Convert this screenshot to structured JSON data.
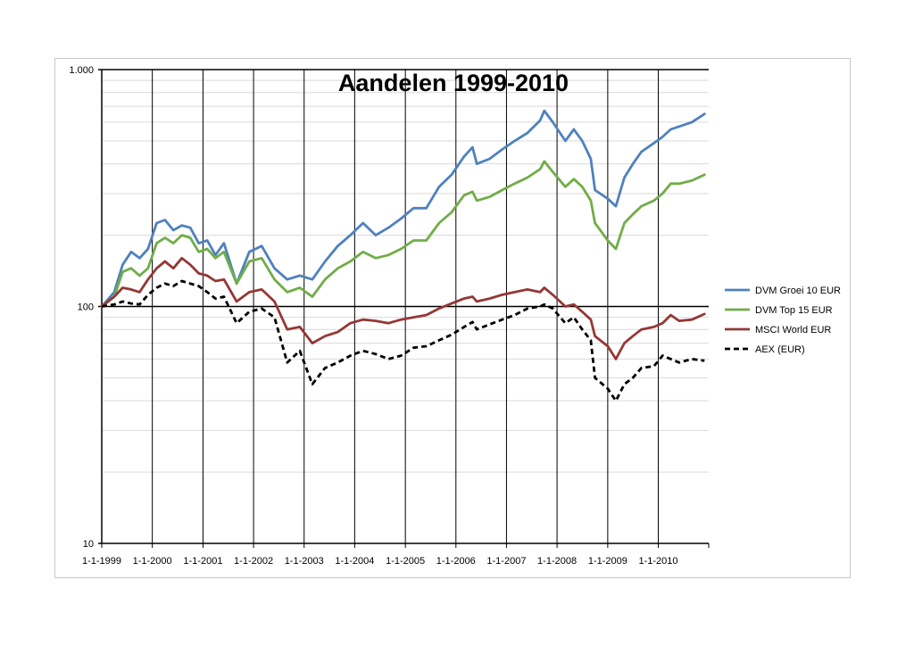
{
  "chart_data": {
    "type": "line",
    "title": "Aandelen 1999-2010",
    "y_scale": "log",
    "ylim": [
      10,
      1000
    ],
    "y_ticks": [
      {
        "value": 10,
        "label": "10"
      },
      {
        "value": 100,
        "label": "100"
      },
      {
        "value": 1000,
        "label": "1.000"
      }
    ],
    "xlim": [
      "1999-01-01",
      "2010-12-31"
    ],
    "x_ticks": [
      {
        "value": "1999-01-01",
        "label": "1-1-1999"
      },
      {
        "value": "2000-01-01",
        "label": "1-1-2000"
      },
      {
        "value": "2001-01-01",
        "label": "1-1-2001"
      },
      {
        "value": "2002-01-01",
        "label": "1-1-2002"
      },
      {
        "value": "2003-01-01",
        "label": "1-1-2003"
      },
      {
        "value": "2004-01-01",
        "label": "1-1-2004"
      },
      {
        "value": "2005-01-01",
        "label": "1-1-2005"
      },
      {
        "value": "2006-01-01",
        "label": "1-1-2006"
      },
      {
        "value": "2007-01-01",
        "label": "1-1-2007"
      },
      {
        "value": "2008-01-01",
        "label": "1-1-2008"
      },
      {
        "value": "2009-01-01",
        "label": "1-1-2009"
      },
      {
        "value": "2010-01-01",
        "label": "1-1-2010"
      }
    ],
    "grid": true,
    "legend_position": "right",
    "series": [
      {
        "name": "DVM Groei 10 EUR",
        "color": "#4f81bd",
        "style": "solid",
        "points": [
          [
            "1999-01-01",
            100
          ],
          [
            "1999-04-01",
            115
          ],
          [
            "1999-06-01",
            150
          ],
          [
            "1999-08-01",
            170
          ],
          [
            "1999-10-01",
            160
          ],
          [
            "1999-12-01",
            175
          ],
          [
            "2000-02-01",
            225
          ],
          [
            "2000-04-01",
            232
          ],
          [
            "2000-06-01",
            210
          ],
          [
            "2000-08-01",
            220
          ],
          [
            "2000-10-01",
            215
          ],
          [
            "2000-12-01",
            185
          ],
          [
            "2001-02-01",
            190
          ],
          [
            "2001-04-01",
            165
          ],
          [
            "2001-06-01",
            185
          ],
          [
            "2001-09-01",
            125
          ],
          [
            "2001-12-01",
            170
          ],
          [
            "2002-03-01",
            180
          ],
          [
            "2002-06-01",
            145
          ],
          [
            "2002-09-01",
            130
          ],
          [
            "2002-12-01",
            135
          ],
          [
            "2003-03-01",
            130
          ],
          [
            "2003-06-01",
            155
          ],
          [
            "2003-09-01",
            180
          ],
          [
            "2003-12-01",
            200
          ],
          [
            "2004-03-01",
            225
          ],
          [
            "2004-06-01",
            200
          ],
          [
            "2004-09-01",
            215
          ],
          [
            "2004-12-01",
            235
          ],
          [
            "2005-03-01",
            260
          ],
          [
            "2005-06-01",
            260
          ],
          [
            "2005-09-01",
            320
          ],
          [
            "2005-12-01",
            360
          ],
          [
            "2006-03-01",
            430
          ],
          [
            "2006-05-01",
            470
          ],
          [
            "2006-06-01",
            400
          ],
          [
            "2006-09-01",
            420
          ],
          [
            "2006-12-01",
            460
          ],
          [
            "2007-03-01",
            500
          ],
          [
            "2007-06-01",
            540
          ],
          [
            "2007-09-01",
            610
          ],
          [
            "2007-10-01",
            670
          ],
          [
            "2007-12-01",
            600
          ],
          [
            "2008-03-01",
            500
          ],
          [
            "2008-05-01",
            560
          ],
          [
            "2008-07-01",
            500
          ],
          [
            "2008-09-01",
            420
          ],
          [
            "2008-10-01",
            310
          ],
          [
            "2009-01-01",
            285
          ],
          [
            "2009-03-01",
            265
          ],
          [
            "2009-05-01",
            350
          ],
          [
            "2009-07-01",
            400
          ],
          [
            "2009-09-01",
            450
          ],
          [
            "2009-12-01",
            490
          ],
          [
            "2010-02-01",
            520
          ],
          [
            "2010-04-01",
            560
          ],
          [
            "2010-06-01",
            575
          ],
          [
            "2010-09-01",
            600
          ],
          [
            "2010-12-01",
            650
          ]
        ]
      },
      {
        "name": "DVM Top 15 EUR",
        "color": "#70ad47",
        "style": "solid",
        "points": [
          [
            "1999-01-01",
            100
          ],
          [
            "1999-04-01",
            110
          ],
          [
            "1999-06-01",
            140
          ],
          [
            "1999-08-01",
            145
          ],
          [
            "1999-10-01",
            135
          ],
          [
            "1999-12-01",
            145
          ],
          [
            "2000-02-01",
            185
          ],
          [
            "2000-04-01",
            195
          ],
          [
            "2000-06-01",
            185
          ],
          [
            "2000-08-01",
            200
          ],
          [
            "2000-10-01",
            195
          ],
          [
            "2000-12-01",
            170
          ],
          [
            "2001-02-01",
            175
          ],
          [
            "2001-04-01",
            160
          ],
          [
            "2001-06-01",
            170
          ],
          [
            "2001-09-01",
            125
          ],
          [
            "2001-12-01",
            155
          ],
          [
            "2002-03-01",
            160
          ],
          [
            "2002-06-01",
            130
          ],
          [
            "2002-09-01",
            115
          ],
          [
            "2002-12-01",
            120
          ],
          [
            "2003-03-01",
            110
          ],
          [
            "2003-06-01",
            130
          ],
          [
            "2003-09-01",
            145
          ],
          [
            "2003-12-01",
            155
          ],
          [
            "2004-03-01",
            170
          ],
          [
            "2004-06-01",
            160
          ],
          [
            "2004-09-01",
            165
          ],
          [
            "2004-12-01",
            175
          ],
          [
            "2005-03-01",
            190
          ],
          [
            "2005-06-01",
            190
          ],
          [
            "2005-09-01",
            225
          ],
          [
            "2005-12-01",
            250
          ],
          [
            "2006-03-01",
            295
          ],
          [
            "2006-05-01",
            305
          ],
          [
            "2006-06-01",
            280
          ],
          [
            "2006-09-01",
            290
          ],
          [
            "2006-12-01",
            310
          ],
          [
            "2007-03-01",
            330
          ],
          [
            "2007-06-01",
            350
          ],
          [
            "2007-09-01",
            380
          ],
          [
            "2007-10-01",
            410
          ],
          [
            "2007-12-01",
            370
          ],
          [
            "2008-03-01",
            320
          ],
          [
            "2008-05-01",
            345
          ],
          [
            "2008-07-01",
            320
          ],
          [
            "2008-09-01",
            280
          ],
          [
            "2008-10-01",
            225
          ],
          [
            "2009-01-01",
            190
          ],
          [
            "2009-03-01",
            175
          ],
          [
            "2009-05-01",
            225
          ],
          [
            "2009-07-01",
            245
          ],
          [
            "2009-09-01",
            265
          ],
          [
            "2009-12-01",
            280
          ],
          [
            "2010-02-01",
            300
          ],
          [
            "2010-04-01",
            330
          ],
          [
            "2010-06-01",
            330
          ],
          [
            "2010-09-01",
            340
          ],
          [
            "2010-12-01",
            360
          ]
        ]
      },
      {
        "name": "MSCI World EUR",
        "color": "#953735",
        "style": "solid",
        "points": [
          [
            "1999-01-01",
            100
          ],
          [
            "1999-04-01",
            110
          ],
          [
            "1999-06-01",
            120
          ],
          [
            "1999-08-01",
            118
          ],
          [
            "1999-10-01",
            115
          ],
          [
            "1999-12-01",
            130
          ],
          [
            "2000-02-01",
            145
          ],
          [
            "2000-04-01",
            155
          ],
          [
            "2000-06-01",
            145
          ],
          [
            "2000-08-01",
            160
          ],
          [
            "2000-10-01",
            150
          ],
          [
            "2000-12-01",
            138
          ],
          [
            "2001-02-01",
            135
          ],
          [
            "2001-04-01",
            128
          ],
          [
            "2001-06-01",
            130
          ],
          [
            "2001-09-01",
            105
          ],
          [
            "2001-12-01",
            115
          ],
          [
            "2002-03-01",
            118
          ],
          [
            "2002-06-01",
            105
          ],
          [
            "2002-09-01",
            80
          ],
          [
            "2002-12-01",
            82
          ],
          [
            "2003-03-01",
            70
          ],
          [
            "2003-06-01",
            75
          ],
          [
            "2003-09-01",
            78
          ],
          [
            "2003-12-01",
            85
          ],
          [
            "2004-03-01",
            88
          ],
          [
            "2004-06-01",
            87
          ],
          [
            "2004-09-01",
            85
          ],
          [
            "2004-12-01",
            88
          ],
          [
            "2005-03-01",
            90
          ],
          [
            "2005-06-01",
            92
          ],
          [
            "2005-09-01",
            98
          ],
          [
            "2005-12-01",
            103
          ],
          [
            "2006-03-01",
            108
          ],
          [
            "2006-05-01",
            110
          ],
          [
            "2006-06-01",
            105
          ],
          [
            "2006-09-01",
            108
          ],
          [
            "2006-12-01",
            112
          ],
          [
            "2007-03-01",
            115
          ],
          [
            "2007-06-01",
            118
          ],
          [
            "2007-09-01",
            115
          ],
          [
            "2007-10-01",
            120
          ],
          [
            "2007-12-01",
            112
          ],
          [
            "2008-03-01",
            100
          ],
          [
            "2008-05-01",
            102
          ],
          [
            "2008-07-01",
            95
          ],
          [
            "2008-09-01",
            88
          ],
          [
            "2008-10-01",
            75
          ],
          [
            "2009-01-01",
            68
          ],
          [
            "2009-03-01",
            60
          ],
          [
            "2009-05-01",
            70
          ],
          [
            "2009-07-01",
            75
          ],
          [
            "2009-09-01",
            80
          ],
          [
            "2009-12-01",
            82
          ],
          [
            "2010-02-01",
            85
          ],
          [
            "2010-04-01",
            92
          ],
          [
            "2010-06-01",
            87
          ],
          [
            "2010-09-01",
            88
          ],
          [
            "2010-12-01",
            93
          ]
        ]
      },
      {
        "name": "AEX (EUR)",
        "color": "#000000",
        "style": "dashed",
        "points": [
          [
            "1999-01-01",
            100
          ],
          [
            "1999-04-01",
            102
          ],
          [
            "1999-06-01",
            105
          ],
          [
            "1999-08-01",
            103
          ],
          [
            "1999-10-01",
            102
          ],
          [
            "1999-12-01",
            112
          ],
          [
            "2000-02-01",
            120
          ],
          [
            "2000-04-01",
            125
          ],
          [
            "2000-06-01",
            122
          ],
          [
            "2000-08-01",
            128
          ],
          [
            "2000-10-01",
            125
          ],
          [
            "2000-12-01",
            122
          ],
          [
            "2001-02-01",
            115
          ],
          [
            "2001-04-01",
            108
          ],
          [
            "2001-06-01",
            110
          ],
          [
            "2001-09-01",
            85
          ],
          [
            "2001-12-01",
            95
          ],
          [
            "2002-03-01",
            98
          ],
          [
            "2002-06-01",
            90
          ],
          [
            "2002-09-01",
            58
          ],
          [
            "2002-12-01",
            65
          ],
          [
            "2003-03-01",
            47
          ],
          [
            "2003-06-01",
            55
          ],
          [
            "2003-09-01",
            58
          ],
          [
            "2003-12-01",
            62
          ],
          [
            "2004-03-01",
            65
          ],
          [
            "2004-06-01",
            63
          ],
          [
            "2004-09-01",
            60
          ],
          [
            "2004-12-01",
            62
          ],
          [
            "2005-03-01",
            67
          ],
          [
            "2005-06-01",
            68
          ],
          [
            "2005-09-01",
            72
          ],
          [
            "2005-12-01",
            76
          ],
          [
            "2006-03-01",
            82
          ],
          [
            "2006-05-01",
            86
          ],
          [
            "2006-06-01",
            80
          ],
          [
            "2006-09-01",
            84
          ],
          [
            "2006-12-01",
            88
          ],
          [
            "2007-03-01",
            92
          ],
          [
            "2007-06-01",
            98
          ],
          [
            "2007-09-01",
            100
          ],
          [
            "2007-10-01",
            102
          ],
          [
            "2007-12-01",
            98
          ],
          [
            "2008-03-01",
            85
          ],
          [
            "2008-05-01",
            90
          ],
          [
            "2008-07-01",
            80
          ],
          [
            "2008-09-01",
            72
          ],
          [
            "2008-10-01",
            50
          ],
          [
            "2009-01-01",
            45
          ],
          [
            "2009-03-01",
            40
          ],
          [
            "2009-05-01",
            47
          ],
          [
            "2009-07-01",
            50
          ],
          [
            "2009-09-01",
            55
          ],
          [
            "2009-12-01",
            56
          ],
          [
            "2010-02-01",
            62
          ],
          [
            "2010-04-01",
            60
          ],
          [
            "2010-06-01",
            58
          ],
          [
            "2010-09-01",
            60
          ],
          [
            "2010-12-01",
            59
          ]
        ]
      }
    ]
  }
}
